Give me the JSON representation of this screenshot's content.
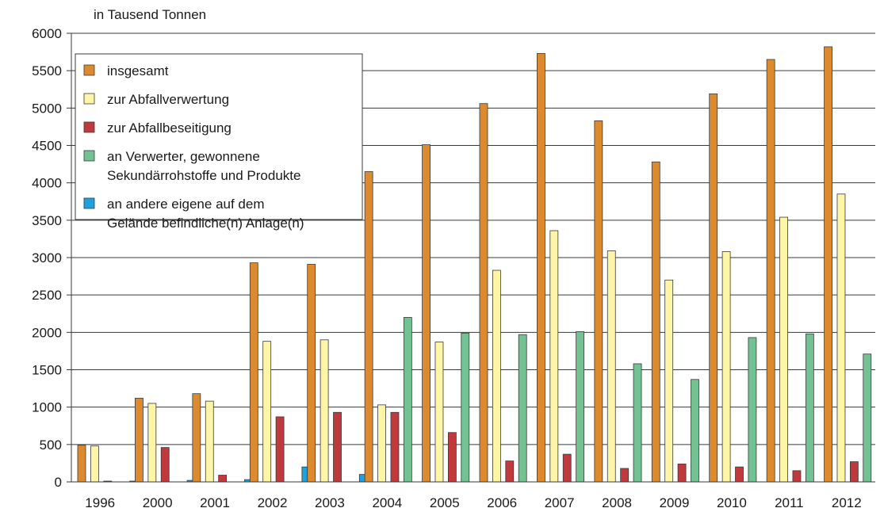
{
  "chart_data": {
    "type": "bar",
    "unit_label": "in Tausend Tonnen",
    "categories": [
      "1996",
      "2000",
      "2001",
      "2002",
      "2003",
      "2004",
      "2005",
      "2006",
      "2007",
      "2008",
      "2009",
      "2010",
      "2011",
      "2012"
    ],
    "ylim": [
      0,
      6000
    ],
    "y_ticks": [
      0,
      500,
      1000,
      1500,
      2000,
      2500,
      3000,
      3500,
      4000,
      4500,
      5000,
      5500,
      6000
    ],
    "grid": true,
    "legend_position": "top-left",
    "series": [
      {
        "name": "insgesamt",
        "legend_lines": [
          "insgesamt"
        ],
        "color": "#dd8a2e",
        "values": [
          490,
          1120,
          1180,
          2930,
          2910,
          4150,
          4510,
          5060,
          5730,
          4830,
          4280,
          5190,
          5650,
          5820
        ]
      },
      {
        "name": "zur Abfallverwertung",
        "legend_lines": [
          "zur Abfallverwertung"
        ],
        "color": "#fff5a6",
        "values": [
          480,
          1050,
          1080,
          1880,
          1900,
          1030,
          1870,
          2830,
          3360,
          3090,
          2700,
          3080,
          3540,
          3850
        ]
      },
      {
        "name": "zur Abfallbeseitigung",
        "legend_lines": [
          "zur Abfallbeseitigung"
        ],
        "color": "#c0393d",
        "values": [
          10,
          460,
          90,
          870,
          930,
          930,
          660,
          280,
          370,
          180,
          240,
          200,
          150,
          270
        ]
      },
      {
        "name": "an Verwerter, gewonnene Sekundärrohstoffe und Produkte",
        "legend_lines": [
          "an Verwerter, gewonnene",
          "Sekundärrohstoffe und Produkte"
        ],
        "color": "#73c293",
        "values": [
          0,
          0,
          0,
          0,
          0,
          2200,
          1990,
          1970,
          2010,
          1580,
          1370,
          1930,
          1980,
          1710
        ]
      },
      {
        "name": "an andere eigene auf dem Gelände befindliche(n) Anlage(n)",
        "legend_lines": [
          "an andere eigene auf dem",
          "Gelände befindliche(n) Anlage(n)"
        ],
        "color": "#1ea2dd",
        "values": [
          10,
          20,
          30,
          200,
          100,
          0,
          0,
          0,
          0,
          0,
          0,
          0,
          0,
          0
        ]
      }
    ]
  }
}
